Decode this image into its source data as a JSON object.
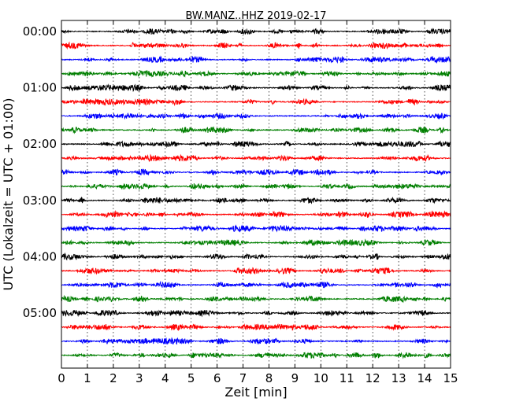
{
  "chart_data": {
    "type": "line",
    "title": "BW.MANZ..HHZ 2019-02-17",
    "xlabel": "Zeit  [min]",
    "ylabel": "UTC (Lokalzeit = UTC + 01:00)",
    "xlim": [
      0,
      15
    ],
    "x_ticks": [
      "0",
      "1",
      "2",
      "3",
      "4",
      "5",
      "6",
      "7",
      "8",
      "9",
      "10",
      "11",
      "12",
      "13",
      "14",
      "15"
    ],
    "y_tick_labels": [
      "00:00",
      "01:00",
      "02:00",
      "03:00",
      "04:00",
      "05:00"
    ],
    "trace_start_times": [
      "00:00",
      "00:15",
      "00:30",
      "00:45",
      "01:00",
      "01:15",
      "01:30",
      "01:45",
      "02:00",
      "02:15",
      "02:30",
      "02:45",
      "03:00",
      "03:15",
      "03:30",
      "03:45",
      "04:00",
      "04:15",
      "04:30",
      "04:45",
      "05:00",
      "05:15",
      "05:30",
      "05:45"
    ],
    "trace_colors": [
      "#000000",
      "#ff0000",
      "#0000ff",
      "#007f00"
    ],
    "grid": "vertical dotted"
  }
}
